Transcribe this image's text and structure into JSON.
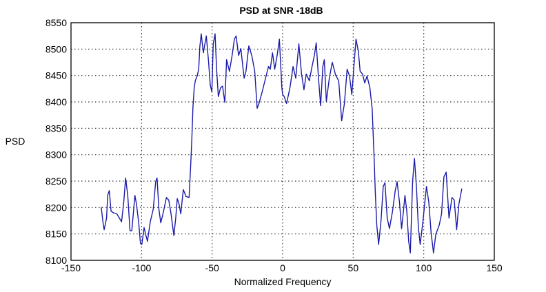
{
  "chart_data": {
    "type": "line",
    "title": "PSD at SNR -18dB",
    "xlabel": "Normalized Frequency",
    "ylabel": "PSD",
    "xlim": [
      -150,
      150
    ],
    "ylim": [
      8100,
      8550
    ],
    "xticks": [
      -150,
      -100,
      -50,
      0,
      50,
      100,
      150
    ],
    "yticks": [
      8100,
      8150,
      8200,
      8250,
      8300,
      8350,
      8400,
      8450,
      8500,
      8550
    ],
    "grid": true,
    "line_color": "#1a1aa8",
    "series": [
      {
        "name": "PSD",
        "x": [
          -128.6,
          -127.3,
          -126.5,
          -124.8,
          -124,
          -122.9,
          -121.6,
          -120,
          -117.5,
          -114.2,
          -112.6,
          -111.3,
          -109.8,
          -108.2,
          -106.9,
          -104.7,
          -103.6,
          -102,
          -100.8,
          -99.8,
          -98.2,
          -97.1,
          -95.8,
          -93.8,
          -91.7,
          -90,
          -89,
          -87.7,
          -86.4,
          -84.8,
          -82.4,
          -80.7,
          -79.1,
          -77.1,
          -75.8,
          -74.7,
          -73.4,
          -72.2,
          -70.4,
          -68.5,
          -66.3,
          -65.2,
          -64.4,
          -63.6,
          -62.7,
          -61.9,
          -60.6,
          -59.5,
          -58.7,
          -57.7,
          -56.2,
          -55.1,
          -54.1,
          -52.5,
          -51.3,
          -50.2,
          -49.2,
          -47.9,
          -46.9,
          -45.6,
          -44,
          -42.6,
          -41,
          -39.7,
          -37.7,
          -35.8,
          -34.2,
          -33,
          -31.2,
          -29.6,
          -27.3,
          -26,
          -24,
          -21.9,
          -19.8,
          -18.1,
          -16.8,
          -14.5,
          -12.1,
          -10,
          -8.8,
          -7.2,
          -5.6,
          -3.9,
          -2.3,
          -0.6,
          0,
          1.1,
          2.8,
          5.2,
          7.4,
          9.3,
          11.5,
          13.4,
          15.1,
          16.7,
          18.9,
          20.8,
          22.5,
          23.8,
          25.4,
          26.9,
          28.5,
          29.5,
          31,
          33.1,
          35.2,
          37.5,
          39.7,
          41.8,
          43.8,
          45.7,
          47.4,
          49,
          50.7,
          52,
          53.6,
          54.9,
          56.6,
          58.2,
          59.8,
          61.8,
          63.4,
          64.8,
          65.6,
          66.7,
          68,
          69.7,
          71.3,
          72.5,
          74.1,
          75.7,
          77.9,
          79.8,
          81.1,
          82.8,
          84.3,
          85.6,
          86.7,
          88,
          89.3,
          90.5,
          92.1,
          93.4,
          94.9,
          96.2,
          97.5,
          99.5,
          101.9,
          103.6,
          105.2,
          106.9,
          108.5,
          111,
          112.6,
          114.3,
          115.9,
          117.9,
          120,
          121.6,
          123.3,
          124.9,
          127
        ],
        "y": [
          8201,
          8171,
          8158,
          8180,
          8223,
          8232,
          8193,
          8190,
          8188,
          8173,
          8210,
          8256,
          8223,
          8156,
          8156,
          8223,
          8206,
          8171,
          8132,
          8130,
          8162,
          8149,
          8136,
          8173,
          8197,
          8249,
          8256,
          8197,
          8171,
          8188,
          8219,
          8214,
          8188,
          8147,
          8180,
          8217,
          8206,
          8188,
          8234,
          8221,
          8219,
          8280,
          8327,
          8388,
          8427,
          8440,
          8449,
          8462,
          8505,
          8529,
          8493,
          8510,
          8525,
          8475,
          8432,
          8419,
          8510,
          8529,
          8467,
          8410,
          8427,
          8430,
          8399,
          8480,
          8458,
          8488,
          8519,
          8525,
          8488,
          8501,
          8445,
          8458,
          8506,
          8488,
          8458,
          8388,
          8397,
          8419,
          8445,
          8467,
          8462,
          8493,
          8462,
          8488,
          8519,
          8427,
          8414,
          8410,
          8397,
          8427,
          8467,
          8445,
          8510,
          8453,
          8423,
          8453,
          8440,
          8467,
          8488,
          8512,
          8445,
          8393,
          8467,
          8480,
          8401,
          8445,
          8475,
          8451,
          8440,
          8364,
          8397,
          8462,
          8449,
          8414,
          8475,
          8519,
          8497,
          8458,
          8453,
          8436,
          8449,
          8427,
          8388,
          8297,
          8232,
          8167,
          8130,
          8175,
          8240,
          8247,
          8180,
          8160,
          8193,
          8232,
          8249,
          8210,
          8160,
          8193,
          8223,
          8193,
          8136,
          8114,
          8249,
          8293,
          8236,
          8162,
          8130,
          8175,
          8240,
          8210,
          8153,
          8114,
          8149,
          8167,
          8188,
          8258,
          8267,
          8180,
          8219,
          8214,
          8158,
          8206,
          8236
        ]
      }
    ]
  }
}
